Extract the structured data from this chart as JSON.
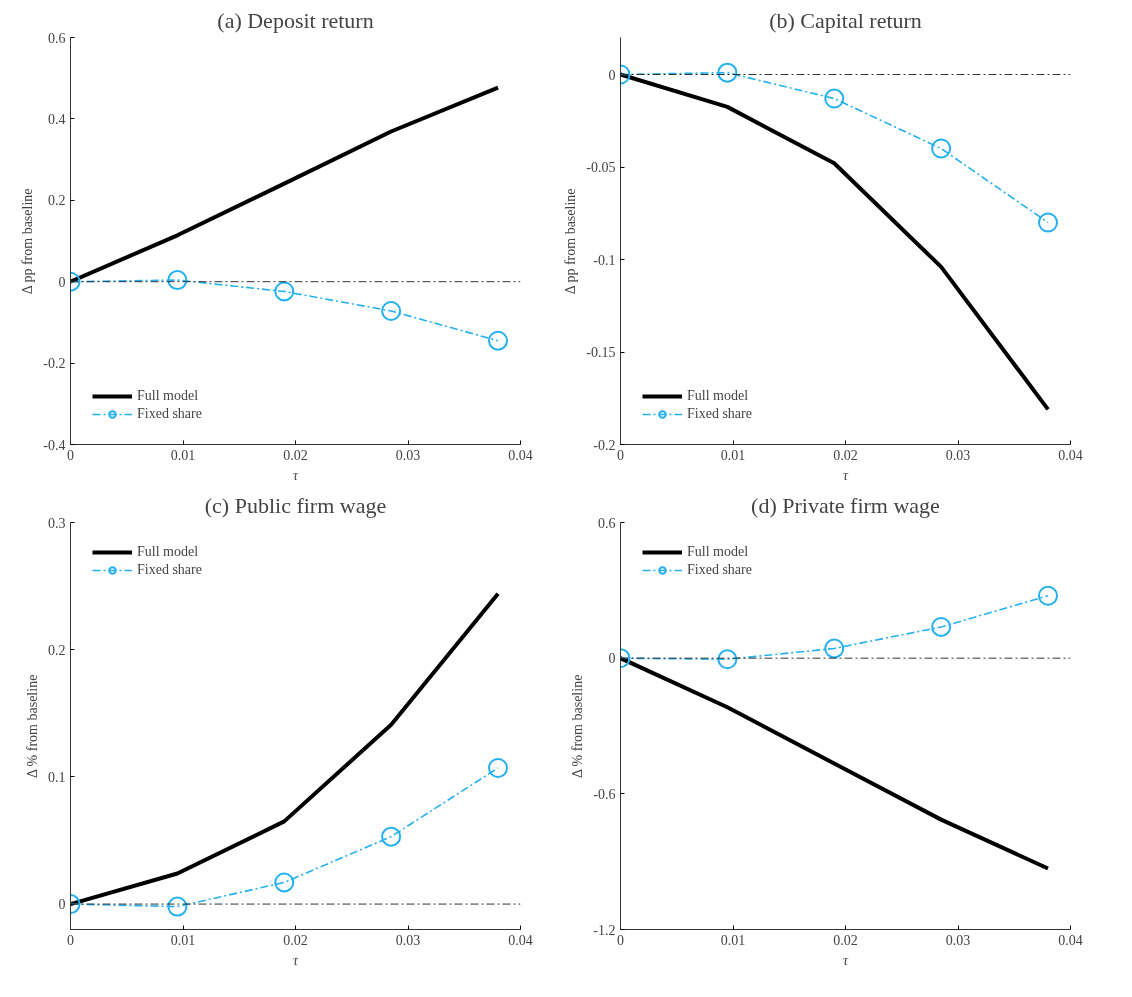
{
  "chart_data": [
    {
      "type": "line",
      "title": "(a) Deposit return",
      "xlabel": "τ",
      "ylabel": "Δ pp from baseline",
      "x": [
        0,
        0.0095,
        0.019,
        0.0285,
        0.038
      ],
      "xlim": [
        0,
        0.04
      ],
      "xticks": [
        0,
        0.01,
        0.02,
        0.03,
        0.04
      ],
      "ylim": [
        -0.4,
        0.6
      ],
      "yticks": [
        -0.4,
        -0.2,
        0,
        0.2,
        0.4,
        0.6
      ],
      "grid": false,
      "legend": "bottom left",
      "series": [
        {
          "name": "Full model",
          "color": "#000000",
          "line_style": "solid",
          "marker": "none",
          "values": [
            0,
            0.114,
            0.241,
            0.369,
            0.477
          ]
        },
        {
          "name": "Fixed share",
          "color": "#22b0f0",
          "line_style": "dashed",
          "marker": "circle",
          "values": [
            0,
            0.004,
            -0.024,
            -0.072,
            -0.145
          ]
        }
      ],
      "ref_lines": [
        {
          "axis": "y",
          "value": 0,
          "color": "#333333",
          "line_style": "dashed"
        }
      ]
    },
    {
      "type": "line",
      "title": "(b) Capital return",
      "xlabel": "τ",
      "ylabel": "Δ pp from baseline",
      "x": [
        0,
        0.0095,
        0.019,
        0.0285,
        0.038
      ],
      "xlim": [
        0,
        0.04
      ],
      "xticks": [
        0,
        0.01,
        0.02,
        0.03,
        0.04
      ],
      "ylim": [
        -0.2,
        0.02
      ],
      "yticks": [
        -0.2,
        -0.15,
        -0.1,
        -0.05,
        0
      ],
      "grid": false,
      "legend": "bottom left",
      "series": [
        {
          "name": "Full model",
          "color": "#000000",
          "line_style": "solid",
          "marker": "none",
          "values": [
            0,
            -0.0175,
            -0.048,
            -0.104,
            -0.181
          ]
        },
        {
          "name": "Fixed share",
          "color": "#22b0f0",
          "line_style": "dashed",
          "marker": "circle",
          "values": [
            0,
            0.001,
            -0.013,
            -0.04,
            -0.08
          ]
        }
      ],
      "ref_lines": [
        {
          "axis": "y",
          "value": 0,
          "color": "#333333",
          "line_style": "dashed"
        }
      ]
    },
    {
      "type": "line",
      "title": "(c) Public firm wage",
      "xlabel": "τ",
      "ylabel": "Δ % from baseline",
      "x": [
        0,
        0.0095,
        0.019,
        0.0285,
        0.038
      ],
      "xlim": [
        0,
        0.04
      ],
      "xticks": [
        0,
        0.01,
        0.02,
        0.03,
        0.04
      ],
      "ylim": [
        -0.02,
        0.3
      ],
      "yticks": [
        0,
        0.1,
        0.2,
        0.3
      ],
      "grid": false,
      "legend": "top left",
      "series": [
        {
          "name": "Full model",
          "color": "#000000",
          "line_style": "solid",
          "marker": "none",
          "values": [
            0,
            0.024,
            0.065,
            0.141,
            0.244
          ]
        },
        {
          "name": "Fixed share",
          "color": "#22b0f0",
          "line_style": "dashed",
          "marker": "circle",
          "values": [
            0,
            -0.002,
            0.017,
            0.053,
            0.107
          ]
        }
      ],
      "ref_lines": [
        {
          "axis": "y",
          "value": 0,
          "color": "#333333",
          "line_style": "dashed"
        }
      ]
    },
    {
      "type": "line",
      "title": "(d) Private firm wage",
      "xlabel": "τ",
      "ylabel": "Δ % from baseline",
      "x": [
        0,
        0.0095,
        0.019,
        0.0285,
        0.038
      ],
      "xlim": [
        0,
        0.04
      ],
      "xticks": [
        0,
        0.01,
        0.02,
        0.03,
        0.04
      ],
      "ylim": [
        -1.2,
        0.6
      ],
      "yticks": [
        -1.2,
        -0.6,
        0,
        0.6
      ],
      "grid": false,
      "legend": "top left",
      "series": [
        {
          "name": "Full model",
          "color": "#000000",
          "line_style": "solid",
          "marker": "none",
          "values": [
            0,
            -0.217,
            -0.466,
            -0.714,
            -0.93
          ]
        },
        {
          "name": "Fixed share",
          "color": "#22b0f0",
          "line_style": "dashed",
          "marker": "circle",
          "values": [
            0,
            -0.005,
            0.043,
            0.138,
            0.276
          ]
        }
      ],
      "ref_lines": [
        {
          "axis": "y",
          "value": 0,
          "color": "#333333",
          "line_style": "dashed"
        }
      ]
    }
  ]
}
